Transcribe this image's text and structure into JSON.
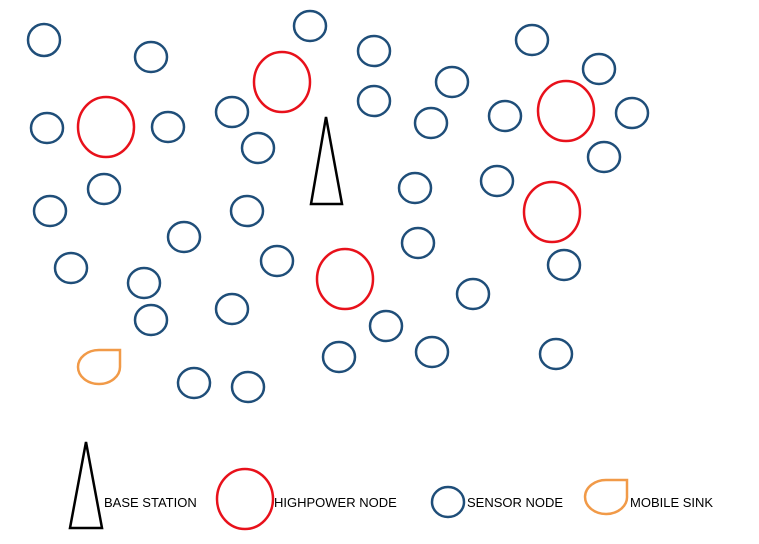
{
  "colors": {
    "sensor": "#1f4e79",
    "highpower": "#e8111b",
    "sink": "#f19a48",
    "base": "#000000"
  },
  "icons": {
    "base_station": "base-station-icon",
    "highpower_node": "highpower-node-icon",
    "sensor_node": "sensor-node-icon",
    "mobile_sink": "mobile-sink-icon"
  },
  "legend": {
    "base_station": "BASE STATION",
    "highpower_node": "HIGHPOWER NODE",
    "sensor_node": "SENSOR NODE",
    "mobile_sink": "MOBILE SINK"
  }
}
